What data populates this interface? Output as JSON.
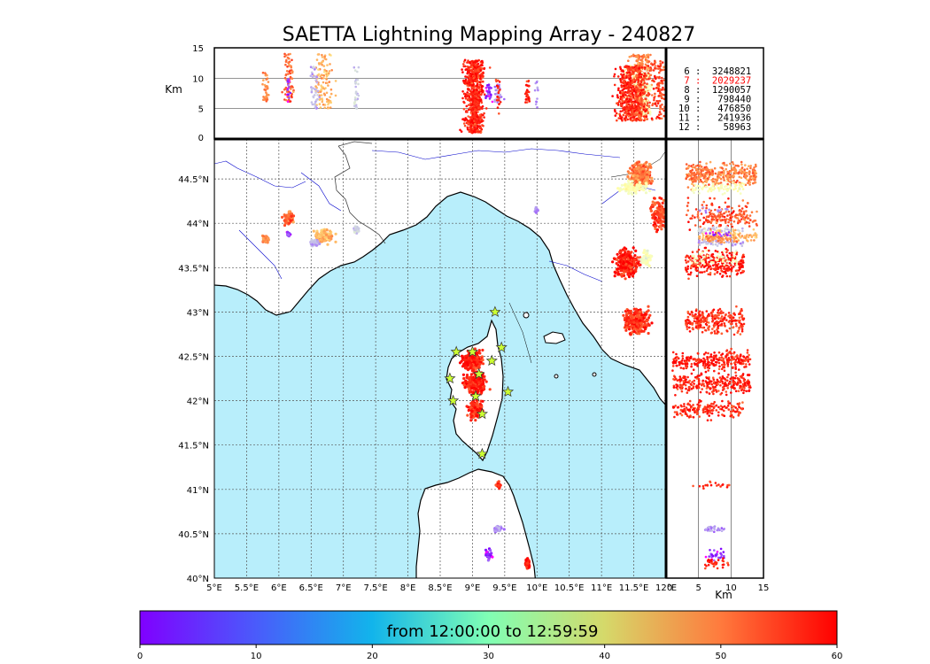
{
  "chart_data": {
    "type": "scatter",
    "title": "SAETTA Lightning Mapping Array - 240827",
    "map": {
      "xticks": [
        "5°E",
        "5.5°E",
        "6°E",
        "6.5°E",
        "7°E",
        "7.5°E",
        "8°E",
        "8.5°E",
        "9°E",
        "9.5°E",
        "10°E",
        "10.5°E",
        "11°E",
        "11.5°E",
        "12°E"
      ],
      "yticks": [
        "40°N",
        "40.5°N",
        "41°N",
        "41.5°N",
        "42°N",
        "42.5°N",
        "43°N",
        "43.5°N",
        "44°N",
        "44.5°N"
      ],
      "xlim": [
        5,
        12
      ],
      "ylim": [
        40,
        44.95
      ],
      "grid": true,
      "sea_color": "#b8eefb"
    },
    "top_panel": {
      "ylabel": "Km",
      "yticks": [
        "0",
        "5",
        "10",
        "15"
      ],
      "ylim": [
        0,
        15
      ]
    },
    "side_panel": {
      "xlabel": "Km",
      "xticks": [
        "0",
        "5",
        "10",
        "15"
      ],
      "xlim": [
        0,
        15
      ]
    },
    "station_counts": [
      {
        "label": " 6 :  3248821",
        "color": "#000000"
      },
      {
        "label": " 7 :  2029237",
        "color": "#ff0000"
      },
      {
        "label": " 8 :  1290057",
        "color": "#000000"
      },
      {
        "label": " 9 :   798440",
        "color": "#000000"
      },
      {
        "label": "10 :   476850",
        "color": "#000000"
      },
      {
        "label": "11 :   241936",
        "color": "#000000"
      },
      {
        "label": "12 :    58963",
        "color": "#000000"
      }
    ],
    "colorbar": {
      "label": "from 12:00:00 to 12:59:59",
      "ticks": [
        "0",
        "10",
        "20",
        "30",
        "40",
        "50",
        "60"
      ],
      "range": [
        0,
        60
      ],
      "colormap": "rainbow"
    },
    "clusters": [
      {
        "lon": 11.6,
        "lat": 44.55,
        "rlon": 0.22,
        "rlat": 0.18,
        "t": 50,
        "alt": [
          3,
          14
        ],
        "n": 340
      },
      {
        "lon": 11.5,
        "lat": 44.4,
        "rlon": 0.3,
        "rlat": 0.1,
        "t": 30,
        "alt": [
          4,
          12
        ],
        "n": 80
      },
      {
        "lon": 11.9,
        "lat": 44.1,
        "rlon": 0.18,
        "rlat": 0.25,
        "t": 55,
        "alt": [
          3,
          13
        ],
        "n": 120
      },
      {
        "lon": 11.4,
        "lat": 43.55,
        "rlon": 0.25,
        "rlat": 0.2,
        "t": 58,
        "alt": [
          3,
          12
        ],
        "n": 260
      },
      {
        "lon": 11.7,
        "lat": 43.6,
        "rlon": 0.12,
        "rlat": 0.15,
        "t": 28,
        "alt": [
          4,
          11
        ],
        "n": 50
      },
      {
        "lon": 11.55,
        "lat": 42.9,
        "rlon": 0.28,
        "rlat": 0.2,
        "t": 56,
        "alt": [
          3,
          12
        ],
        "n": 260
      },
      {
        "lon": 9.0,
        "lat": 42.45,
        "rlon": 0.22,
        "rlat": 0.15,
        "t": 58,
        "alt": [
          1,
          13
        ],
        "n": 260
      },
      {
        "lon": 9.05,
        "lat": 42.2,
        "rlon": 0.25,
        "rlat": 0.18,
        "t": 58,
        "alt": [
          1,
          13
        ],
        "n": 260
      },
      {
        "lon": 9.05,
        "lat": 41.9,
        "rlon": 0.15,
        "rlat": 0.15,
        "t": 57,
        "alt": [
          1,
          12
        ],
        "n": 170
      },
      {
        "lon": 6.15,
        "lat": 44.05,
        "rlon": 0.12,
        "rlat": 0.1,
        "t": 52,
        "alt": [
          6,
          14
        ],
        "n": 70
      },
      {
        "lon": 6.7,
        "lat": 43.85,
        "rlon": 0.22,
        "rlat": 0.1,
        "t": 45,
        "alt": [
          5,
          14
        ],
        "n": 110
      },
      {
        "lon": 6.55,
        "lat": 43.78,
        "rlon": 0.1,
        "rlat": 0.05,
        "t": 15,
        "alt": [
          5,
          12
        ],
        "n": 40
      },
      {
        "lon": 5.8,
        "lat": 43.82,
        "rlon": 0.08,
        "rlat": 0.06,
        "t": 50,
        "alt": [
          6,
          11
        ],
        "n": 35
      },
      {
        "lon": 7.2,
        "lat": 43.92,
        "rlon": 0.06,
        "rlat": 0.05,
        "t": 18,
        "alt": [
          5,
          12
        ],
        "n": 30
      },
      {
        "lon": 6.15,
        "lat": 43.88,
        "rlon": 0.04,
        "rlat": 0.04,
        "t": 2,
        "alt": [
          6,
          10
        ],
        "n": 15
      },
      {
        "lon": 10.0,
        "lat": 44.15,
        "rlon": 0.04,
        "rlat": 0.05,
        "t": 12,
        "alt": [
          5,
          10
        ],
        "n": 12
      },
      {
        "lon": 9.4,
        "lat": 40.55,
        "rlon": 0.1,
        "rlat": 0.06,
        "t": 12,
        "alt": [
          6,
          9
        ],
        "n": 30
      },
      {
        "lon": 9.25,
        "lat": 40.27,
        "rlon": 0.08,
        "rlat": 0.08,
        "t": 3,
        "alt": [
          6,
          9
        ],
        "n": 30
      },
      {
        "lon": 9.85,
        "lat": 40.17,
        "rlon": 0.05,
        "rlat": 0.08,
        "t": 58,
        "alt": [
          6,
          10
        ],
        "n": 35
      },
      {
        "lon": 9.4,
        "lat": 41.05,
        "rlon": 0.06,
        "rlat": 0.05,
        "t": 57,
        "alt": [
          4,
          10
        ],
        "n": 20
      }
    ],
    "stations": [
      {
        "lon": 9.35,
        "lat": 43.0
      },
      {
        "lon": 8.75,
        "lat": 42.55
      },
      {
        "lon": 9.0,
        "lat": 42.55
      },
      {
        "lon": 9.3,
        "lat": 42.45
      },
      {
        "lon": 9.45,
        "lat": 42.6
      },
      {
        "lon": 8.65,
        "lat": 42.25
      },
      {
        "lon": 9.1,
        "lat": 42.3
      },
      {
        "lon": 9.55,
        "lat": 42.1
      },
      {
        "lon": 8.7,
        "lat": 42.0
      },
      {
        "lon": 9.05,
        "lat": 42.05
      },
      {
        "lon": 9.15,
        "lat": 41.85
      },
      {
        "lon": 9.15,
        "lat": 41.4
      }
    ]
  }
}
